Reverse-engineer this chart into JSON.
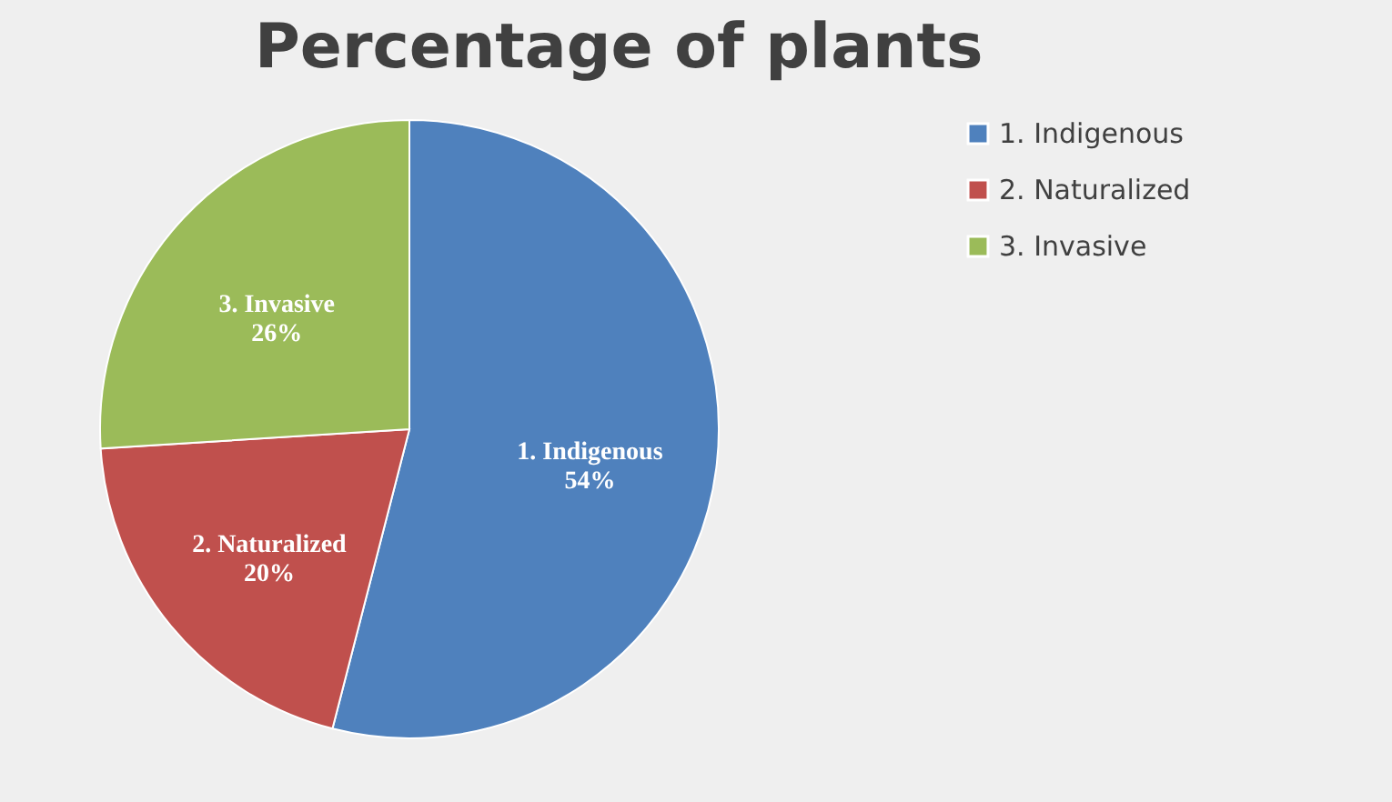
{
  "chart_data": {
    "type": "pie",
    "title": "Percentage of plants",
    "categories": [
      "1.    Indigenous",
      "2.    Naturalized",
      "3.    Invasive"
    ],
    "values": [
      54,
      20,
      26
    ],
    "colors": [
      "#4f81bd",
      "#c0504d",
      "#9bbb59"
    ],
    "value_labels": [
      "54%",
      "20%",
      "26%"
    ],
    "legend": "right"
  }
}
